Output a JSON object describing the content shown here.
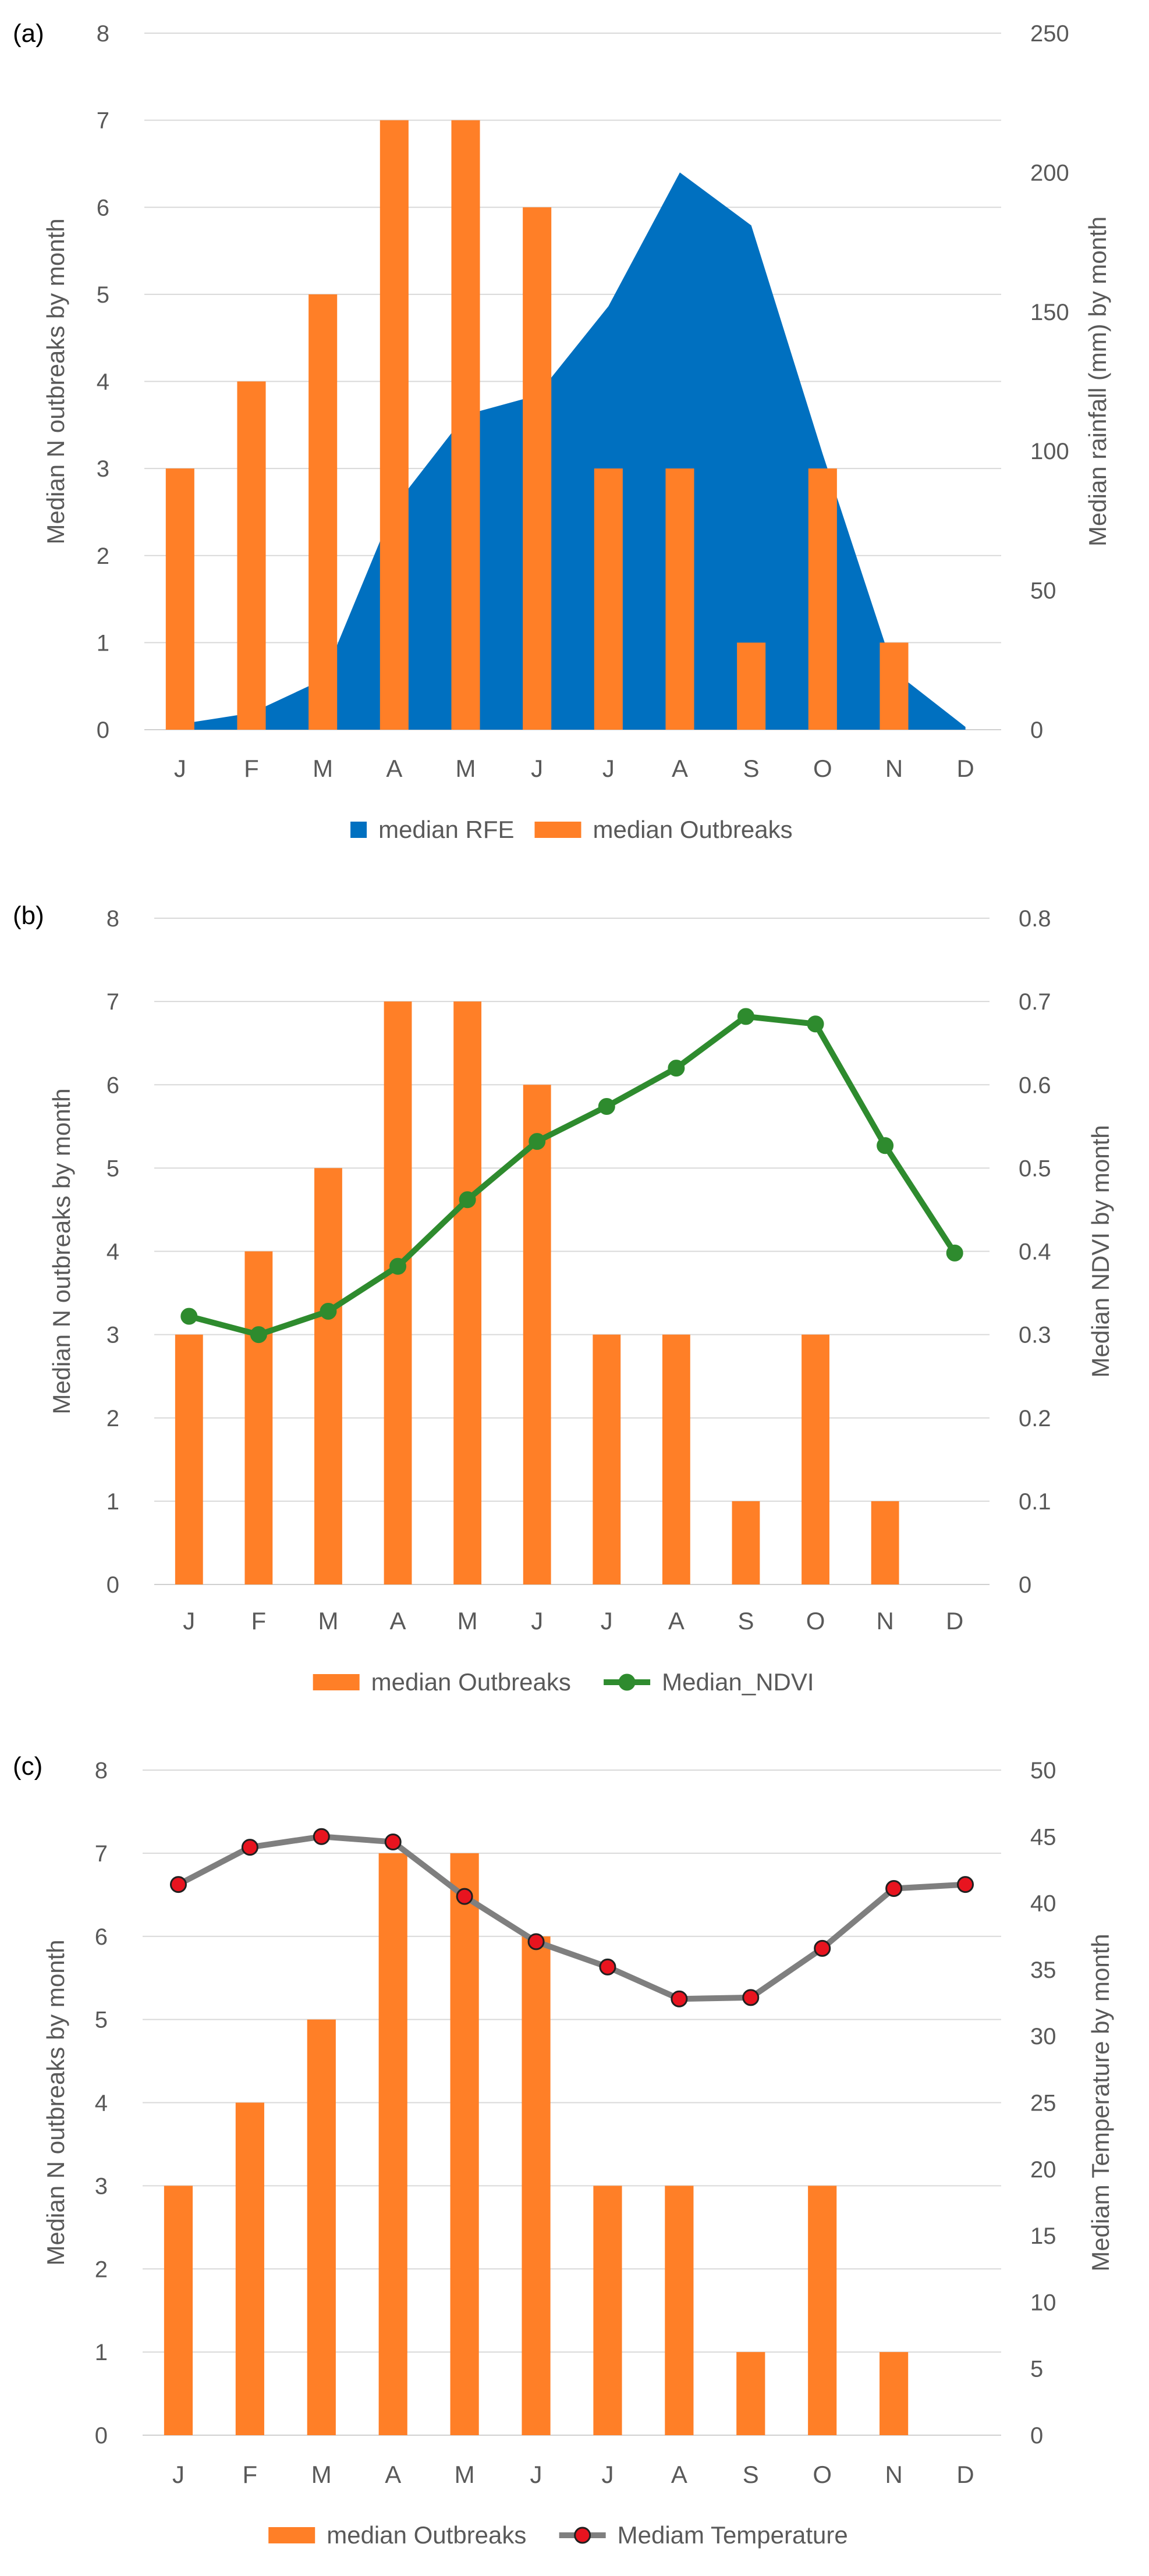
{
  "chart_data": [
    {
      "panel_label": "(a)",
      "type": "bar+area",
      "categories": [
        "J",
        "F",
        "M",
        "A",
        "M",
        "J",
        "J",
        "A",
        "S",
        "O",
        "N",
        "D"
      ],
      "series": [
        {
          "name": "median RFE",
          "kind": "area",
          "axis": "right",
          "color": "#0070C0",
          "values": [
            2,
            6,
            18,
            80,
            113,
            120,
            152,
            200,
            181,
            99,
            21,
            1
          ]
        },
        {
          "name": "median Outbreaks",
          "kind": "bar",
          "axis": "left",
          "color": "#FF7F27",
          "values": [
            3,
            4,
            5,
            7,
            7,
            6,
            3,
            3,
            1,
            3,
            1,
            0
          ]
        }
      ],
      "left_axis": {
        "label": "Median N outbreaks by month",
        "min": 0,
        "max": 8,
        "ticks": [
          "0",
          "1",
          "2",
          "3",
          "4",
          "5",
          "6",
          "7",
          "8"
        ]
      },
      "right_axis": {
        "label": "Median rainfall (mm) by month",
        "min": 0,
        "max": 250,
        "ticks": [
          "0",
          "50",
          "100",
          "150",
          "200",
          "250"
        ]
      },
      "legend_position": "bottom",
      "grid": true
    },
    {
      "panel_label": "(b)",
      "type": "bar+line",
      "categories": [
        "J",
        "F",
        "M",
        "A",
        "M",
        "J",
        "J",
        "A",
        "S",
        "O",
        "N",
        "D"
      ],
      "series": [
        {
          "name": "median Outbreaks",
          "kind": "bar",
          "axis": "left",
          "color": "#FF7F27",
          "values": [
            3,
            4,
            5,
            7,
            7,
            6,
            3,
            3,
            1,
            3,
            1,
            0
          ]
        },
        {
          "name": "Median_NDVI",
          "kind": "line",
          "axis": "right",
          "color": "#2E8B2E",
          "marker_fill": "#2E8B2E",
          "values": [
            0.322,
            0.3,
            0.328,
            0.382,
            0.462,
            0.532,
            0.574,
            0.62,
            0.682,
            0.673,
            0.527,
            0.398
          ]
        }
      ],
      "left_axis": {
        "label": "Median N outbreaks by month",
        "min": 0,
        "max": 8,
        "ticks": [
          "0",
          "1",
          "2",
          "3",
          "4",
          "5",
          "6",
          "7",
          "8"
        ]
      },
      "right_axis": {
        "label": "Median NDVI by month",
        "min": 0,
        "max": 0.8,
        "ticks": [
          "0",
          "0.1",
          "0.2",
          "0.3",
          "0.4",
          "0.5",
          "0.6",
          "0.7",
          "0.8"
        ]
      },
      "legend_position": "bottom",
      "grid": true
    },
    {
      "panel_label": "(c)",
      "type": "bar+line",
      "categories": [
        "J",
        "F",
        "M",
        "A",
        "M",
        "J",
        "J",
        "A",
        "S",
        "O",
        "N",
        "D"
      ],
      "series": [
        {
          "name": "median Outbreaks",
          "kind": "bar",
          "axis": "left",
          "color": "#FF7F27",
          "values": [
            3,
            4,
            5,
            7,
            7,
            6,
            3,
            3,
            1,
            3,
            1,
            0
          ]
        },
        {
          "name": "Mediam Temperature",
          "kind": "line",
          "axis": "right",
          "color": "#7F7F7F",
          "marker_fill": "#E8141F",
          "values": [
            41.4,
            44.2,
            45.0,
            44.6,
            40.5,
            37.1,
            35.2,
            32.8,
            32.9,
            36.6,
            41.1,
            41.4
          ]
        }
      ],
      "left_axis": {
        "label": "Median N outbreaks by month",
        "min": 0,
        "max": 8,
        "ticks": [
          "0",
          "1",
          "2",
          "3",
          "4",
          "5",
          "6",
          "7",
          "8"
        ]
      },
      "right_axis": {
        "label": "Mediam Temperature by month",
        "min": 0,
        "max": 50,
        "ticks": [
          "0",
          "5",
          "10",
          "15",
          "20",
          "25",
          "30",
          "35",
          "40",
          "45",
          "50"
        ]
      },
      "legend_position": "bottom",
      "grid": true
    }
  ]
}
